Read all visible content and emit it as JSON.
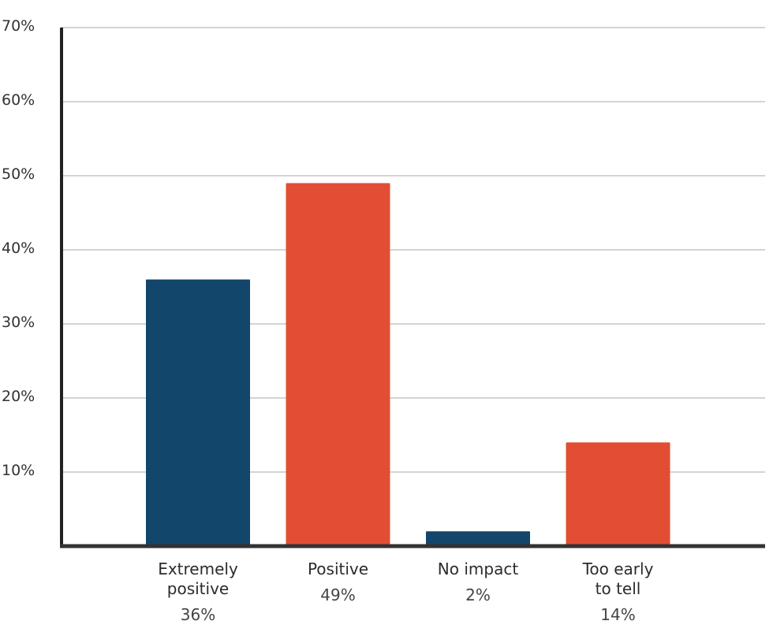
{
  "chart_data": {
    "type": "bar",
    "categories": [
      "Extremely\npositive",
      "Positive",
      "No impact",
      "Too early\nto tell"
    ],
    "values": [
      36,
      49,
      2,
      14
    ],
    "value_labels": [
      "36%",
      "49%",
      "2%",
      "14%"
    ],
    "colors": [
      "#12466a",
      "#e24e33",
      "#12466a",
      "#e24e33"
    ],
    "ylim": [
      0,
      70
    ],
    "yticks": [
      {
        "value": 10,
        "label": "10%"
      },
      {
        "value": 20,
        "label": "20%"
      },
      {
        "value": 30,
        "label": "30%"
      },
      {
        "value": 40,
        "label": "40%"
      },
      {
        "value": 50,
        "label": "50%"
      },
      {
        "value": 60,
        "label": "60%"
      },
      {
        "value": 70,
        "label": "70%"
      }
    ],
    "grid": true
  }
}
